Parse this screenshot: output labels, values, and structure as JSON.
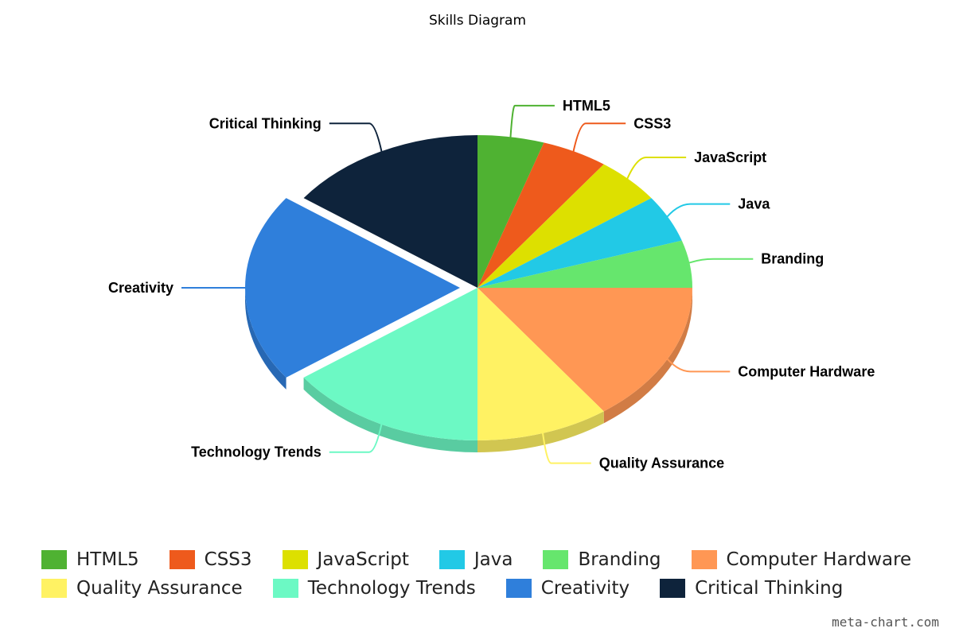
{
  "title": "Skills Diagram",
  "watermark": "meta-chart.com",
  "chart_data": {
    "type": "pie",
    "title": "Skills Diagram",
    "legend_position": "bottom",
    "slices": [
      {
        "name": "HTML5",
        "value": 5,
        "color": "#4FB232"
      },
      {
        "name": "CSS3",
        "value": 5,
        "color": "#EE5A1C"
      },
      {
        "name": "JavaScript",
        "value": 5,
        "color": "#DDE000"
      },
      {
        "name": "Java",
        "value": 5,
        "color": "#22C9E6"
      },
      {
        "name": "Branding",
        "value": 5,
        "color": "#66E66D"
      },
      {
        "name": "Computer Hardware",
        "value": 15,
        "color": "#FF9754"
      },
      {
        "name": "Quality Assurance",
        "value": 10,
        "color": "#FFF263"
      },
      {
        "name": "Technology Trends",
        "value": 15,
        "color": "#6CF9C4"
      },
      {
        "name": "Creativity",
        "value": 20,
        "color": "#2F7FDB"
      },
      {
        "name": "Critical Thinking",
        "value": 15,
        "color": "#0E233B"
      }
    ]
  }
}
